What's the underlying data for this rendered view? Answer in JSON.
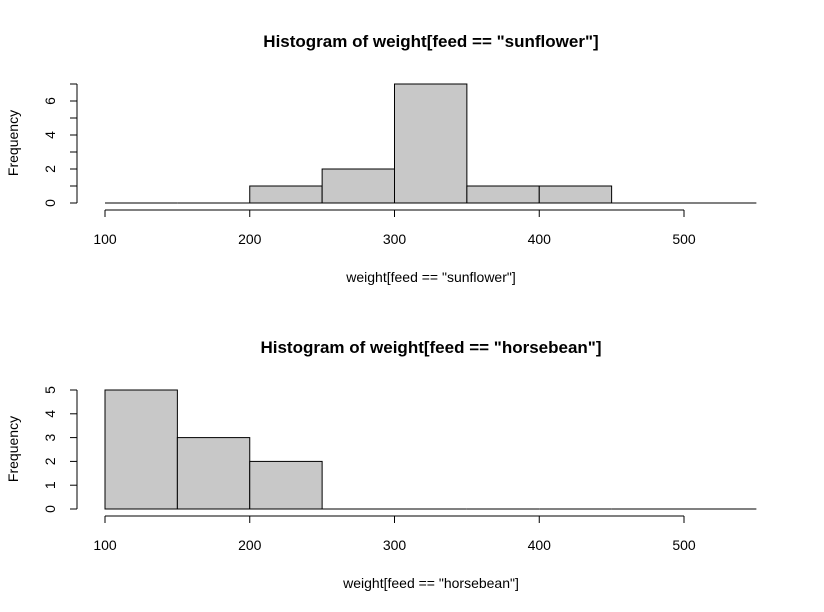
{
  "chart_data": [
    {
      "type": "bar",
      "title": "Histogram of weight[feed == \"sunflower\"]",
      "xlabel": "weight[feed == \"sunflower\"]",
      "ylabel": "Frequency",
      "xlim": [
        100,
        550
      ],
      "xticks": [
        100,
        200,
        300,
        400,
        500
      ],
      "ylim": [
        0,
        7
      ],
      "yticks": [
        0,
        2,
        4,
        6
      ],
      "bins": [
        {
          "from": 100,
          "to": 150,
          "count": 0
        },
        {
          "from": 150,
          "to": 200,
          "count": 0
        },
        {
          "from": 200,
          "to": 250,
          "count": 1
        },
        {
          "from": 250,
          "to": 300,
          "count": 2
        },
        {
          "from": 300,
          "to": 350,
          "count": 7
        },
        {
          "from": 350,
          "to": 400,
          "count": 1
        },
        {
          "from": 400,
          "to": 450,
          "count": 1
        },
        {
          "from": 450,
          "to": 500,
          "count": 0
        },
        {
          "from": 500,
          "to": 550,
          "count": 0
        }
      ],
      "bar_fill": "#c8c8c8",
      "bar_stroke": "#000000",
      "grid": false
    },
    {
      "type": "bar",
      "title": "Histogram of weight[feed == \"horsebean\"]",
      "xlabel": "weight[feed == \"horsebean\"]",
      "ylabel": "Frequency",
      "xlim": [
        100,
        550
      ],
      "xticks": [
        100,
        200,
        300,
        400,
        500
      ],
      "ylim": [
        0,
        5
      ],
      "yticks": [
        0,
        1,
        2,
        3,
        4,
        5
      ],
      "bins": [
        {
          "from": 100,
          "to": 150,
          "count": 5
        },
        {
          "from": 150,
          "to": 200,
          "count": 3
        },
        {
          "from": 200,
          "to": 250,
          "count": 2
        },
        {
          "from": 250,
          "to": 300,
          "count": 0
        },
        {
          "from": 300,
          "to": 350,
          "count": 0
        },
        {
          "from": 350,
          "to": 400,
          "count": 0
        },
        {
          "from": 400,
          "to": 450,
          "count": 0
        },
        {
          "from": 450,
          "to": 500,
          "count": 0
        },
        {
          "from": 500,
          "to": 550,
          "count": 0
        }
      ],
      "bar_fill": "#c8c8c8",
      "bar_stroke": "#000000",
      "grid": false
    }
  ]
}
